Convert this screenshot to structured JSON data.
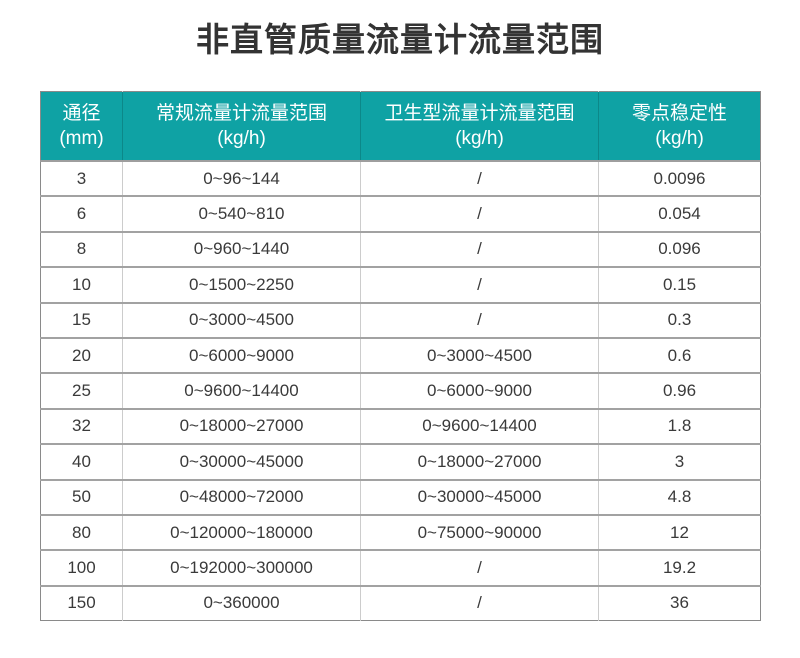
{
  "page": {
    "title": "非直管质量流量计流量范围"
  },
  "colors": {
    "header_bg": "#0fa2a4",
    "header_text": "#ffffff",
    "body_text": "#3a3a3a",
    "row_border": "#a2a2a2",
    "column_border": "#cccccc",
    "outer_border": "#8a8a8a"
  },
  "table": {
    "headers": [
      {
        "line1": "通径",
        "line2": "(mm)"
      },
      {
        "line1": "常规流量计流量范围",
        "line2": "(kg/h)"
      },
      {
        "line1": "卫生型流量计流量范围",
        "line2": "(kg/h)"
      },
      {
        "line1": "零点稳定性",
        "line2": "(kg/h)"
      }
    ],
    "rows": [
      [
        "3",
        "0~96~144",
        "/",
        "0.0096"
      ],
      [
        "6",
        "0~540~810",
        "/",
        "0.054"
      ],
      [
        "8",
        "0~960~1440",
        "/",
        "0.096"
      ],
      [
        "10",
        "0~1500~2250",
        "/",
        "0.15"
      ],
      [
        "15",
        "0~3000~4500",
        "/",
        "0.3"
      ],
      [
        "20",
        "0~6000~9000",
        "0~3000~4500",
        "0.6"
      ],
      [
        "25",
        "0~9600~14400",
        "0~6000~9000",
        "0.96"
      ],
      [
        "32",
        "0~18000~27000",
        "0~9600~14400",
        "1.8"
      ],
      [
        "40",
        "0~30000~45000",
        "0~18000~27000",
        "3"
      ],
      [
        "50",
        "0~48000~72000",
        "0~30000~45000",
        "4.8"
      ],
      [
        "80",
        "0~120000~180000",
        "0~75000~90000",
        "12"
      ],
      [
        "100",
        "0~192000~300000",
        "/",
        "19.2"
      ],
      [
        "150",
        "0~360000",
        "/",
        "36"
      ]
    ]
  }
}
